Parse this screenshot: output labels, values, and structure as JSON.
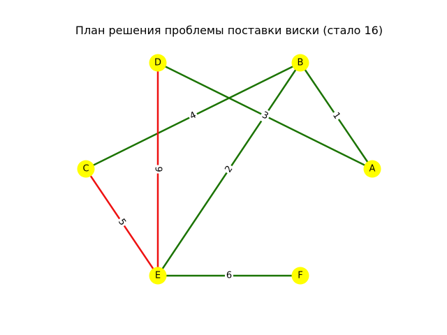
{
  "title": "План решения проблемы поставки виски (стало 16)",
  "colors": {
    "node": "#ffff00",
    "edge_kept": "#1a7300",
    "edge_removed": "#ee1111",
    "label_bg": "#ffffff"
  },
  "nodes": [
    {
      "id": "A",
      "label": "A"
    },
    {
      "id": "B",
      "label": "B"
    },
    {
      "id": "C",
      "label": "C"
    },
    {
      "id": "D",
      "label": "D"
    },
    {
      "id": "E",
      "label": "E"
    },
    {
      "id": "F",
      "label": "F"
    }
  ],
  "edges": [
    {
      "from": "D",
      "to": "A",
      "weight": "3",
      "status": "kept"
    },
    {
      "from": "B",
      "to": "A",
      "weight": "1",
      "status": "kept"
    },
    {
      "from": "B",
      "to": "C",
      "weight": "4",
      "status": "kept"
    },
    {
      "from": "B",
      "to": "E",
      "weight": "2",
      "status": "kept"
    },
    {
      "from": "E",
      "to": "F",
      "weight": "6",
      "status": "kept"
    },
    {
      "from": "D",
      "to": "E",
      "weight": "9",
      "status": "removed"
    },
    {
      "from": "C",
      "to": "E",
      "weight": "5",
      "status": "removed"
    }
  ]
}
